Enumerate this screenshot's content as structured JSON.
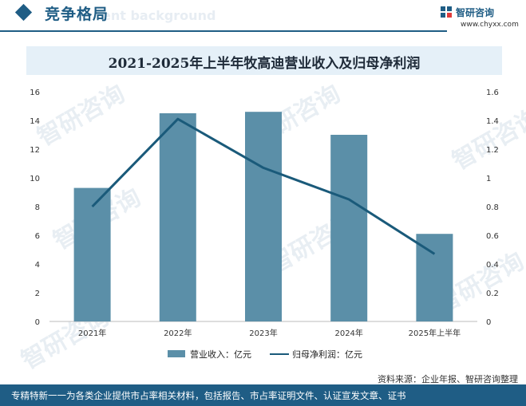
{
  "header": {
    "title": "竞争格局",
    "watermark": "ent background"
  },
  "brand": {
    "name": "智研咨询",
    "url": "www.chyxx.com"
  },
  "watermarks": {
    "text": "智研咨询"
  },
  "chart_data": {
    "type": "bar",
    "title": "2021-2025年上半年牧高迪营业收入及归母净利润",
    "categories": [
      "2021年",
      "2022年",
      "2023年",
      "2024年",
      "2025年上半年"
    ],
    "series": [
      {
        "name": "营业收入：亿元",
        "type": "bar",
        "axis": "left",
        "values": [
          9.3,
          14.5,
          14.6,
          13.0,
          6.1
        ],
        "color": "#5b8fa8"
      },
      {
        "name": "归母净利润：亿元",
        "type": "line",
        "axis": "right",
        "values": [
          0.8,
          1.41,
          1.07,
          0.85,
          0.47
        ],
        "color": "#1a5a7a"
      }
    ],
    "left_axis": {
      "ylim": [
        0,
        16
      ],
      "ticks": [
        "0",
        "2",
        "4",
        "6",
        "8",
        "10",
        "12",
        "14",
        "16"
      ]
    },
    "right_axis": {
      "ylim": [
        0,
        1.6
      ],
      "ticks": [
        "0",
        "0.2",
        "0.4",
        "0.6",
        "0.8",
        "1",
        "1.2",
        "1.4",
        "1.6"
      ]
    },
    "grid": false,
    "legend": "bottom"
  },
  "legend": {
    "bar_label": "营业收入：亿元",
    "line_label": "归母净利润：亿元"
  },
  "source": "资料来源：企业年报、智研咨询整理",
  "footer": "专精特新一一为各类企业提供市占率相关材料，包括报告、市占率证明文件、认证宣发文章、证书"
}
